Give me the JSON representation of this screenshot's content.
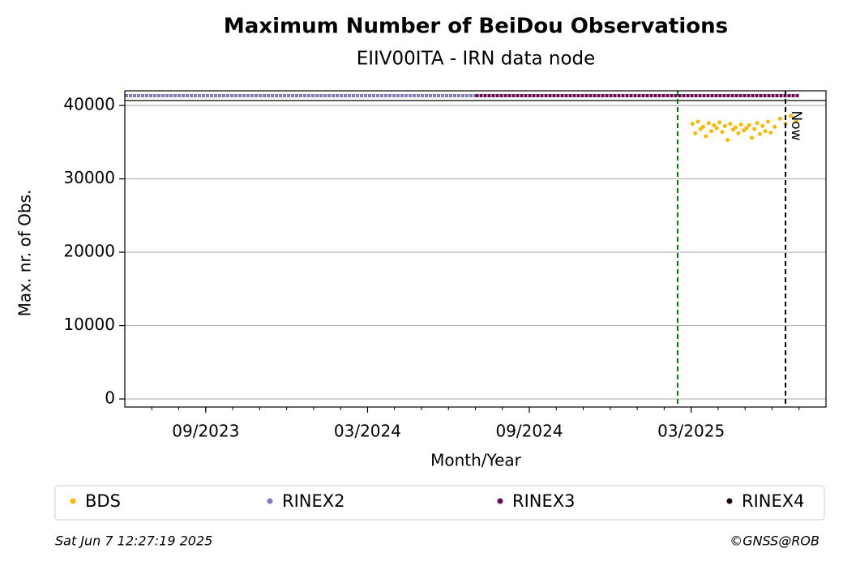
{
  "chart_data": {
    "type": "scatter",
    "title": "Maximum Number of BeiDou Observations",
    "subtitle": "EIIV00ITA - IRN data node",
    "x_label": "Month/Year",
    "y_label": "Max. nr. of Obs.",
    "xlim": [
      "2023-06",
      "2025-07"
    ],
    "xticks": [
      {
        "value": "2023-09",
        "label": "09/2023"
      },
      {
        "value": "2024-03",
        "label": "03/2024"
      },
      {
        "value": "2024-09",
        "label": "09/2024"
      },
      {
        "value": "2025-03",
        "label": "03/2025"
      }
    ],
    "ylim": [
      -1100,
      42000
    ],
    "yticks": [
      0,
      10000,
      20000,
      30000,
      40000
    ],
    "grid": true,
    "series": [
      {
        "name": "BDS",
        "color": "#ffb800",
        "x": [
          "2025-03",
          "2025-03",
          "2025-03",
          "2025-03",
          "2025-03",
          "2025-03",
          "2025-03",
          "2025-03",
          "2025-03",
          "2025-03",
          "2025-04",
          "2025-04",
          "2025-04",
          "2025-04",
          "2025-04",
          "2025-04",
          "2025-04",
          "2025-04",
          "2025-04",
          "2025-04",
          "2025-05",
          "2025-05",
          "2025-05",
          "2025-05",
          "2025-05",
          "2025-05",
          "2025-05",
          "2025-05",
          "2025-05",
          "2025-05",
          "2025-06",
          "2025-06",
          "2025-06",
          "2025-06",
          "2025-06"
        ],
        "values": [
          37500,
          36200,
          37800,
          36800,
          37100,
          35800,
          37600,
          36500,
          37300,
          36900,
          37700,
          36400,
          37200,
          35300,
          37500,
          36700,
          37000,
          36200,
          37400,
          36600,
          36900,
          37300,
          35600,
          36800,
          37600,
          36100,
          37200,
          36500,
          37800,
          36300,
          37100,
          38200,
          37500,
          38600,
          37800
        ]
      },
      {
        "name": "RINEX2",
        "color": "#7f7fbf",
        "start": "2023-06",
        "end": "2024-06"
      },
      {
        "name": "RINEX3",
        "color": "#6a0a5a",
        "start": "2024-07",
        "end": "2025-06"
      },
      {
        "name": "RINEX4",
        "color": "#22001a"
      }
    ],
    "vlines": [
      {
        "x": "2025-02",
        "color": "#008000"
      },
      {
        "x": "2025-06",
        "color": "#000000",
        "label": "Now"
      }
    ],
    "footer_left": "Sat Jun  7 12:27:19 2025",
    "footer_right": "©GNSS@ROB"
  }
}
